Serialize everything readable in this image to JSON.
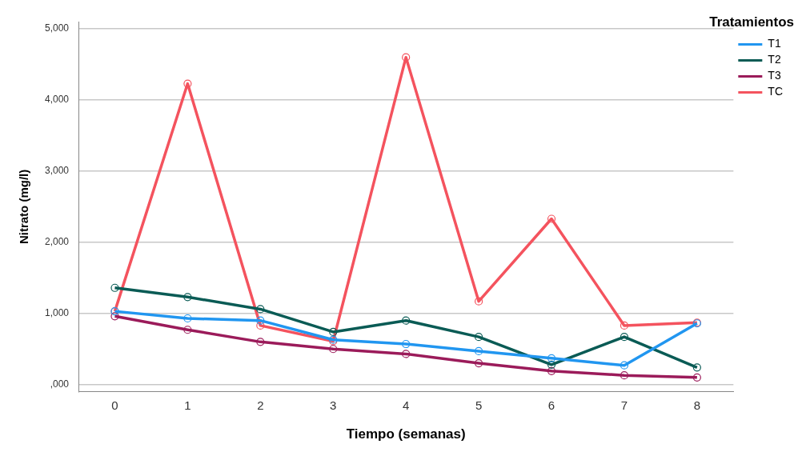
{
  "chart_data": {
    "type": "line",
    "xlabel": "Tiempo (semanas)",
    "ylabel": "Nitrato (mg/l)",
    "legend_title": "Tratamientos",
    "categories": [
      "0",
      "1",
      "2",
      "3",
      "4",
      "5",
      "6",
      "7",
      "8"
    ],
    "series": [
      {
        "name": "T1",
        "color": "#2196f0",
        "values": [
          1030,
          930,
          900,
          630,
          570,
          470,
          370,
          270,
          860
        ]
      },
      {
        "name": "T2",
        "color": "#0a5b55",
        "values": [
          1360,
          1230,
          1060,
          740,
          900,
          670,
          280,
          670,
          240
        ]
      },
      {
        "name": "T3",
        "color": "#9b1b5a",
        "values": [
          960,
          770,
          600,
          500,
          430,
          300,
          190,
          130,
          100
        ]
      },
      {
        "name": "TC",
        "color": "#f4535e",
        "values": [
          1030,
          4230,
          830,
          610,
          4600,
          1170,
          2330,
          830,
          870
        ]
      }
    ],
    "ylim": [
      -100,
      5100
    ],
    "yticks": [
      {
        "value": 0,
        "label": ",000"
      },
      {
        "value": 1000,
        "label": "1,000"
      },
      {
        "value": 2000,
        "label": "2,000"
      },
      {
        "value": 3000,
        "label": "3,000"
      },
      {
        "value": 4000,
        "label": "4,000"
      },
      {
        "value": 5000,
        "label": "5,000"
      }
    ],
    "grid": "y",
    "legend": "top right",
    "marker": "circle",
    "line_style": "solid"
  }
}
